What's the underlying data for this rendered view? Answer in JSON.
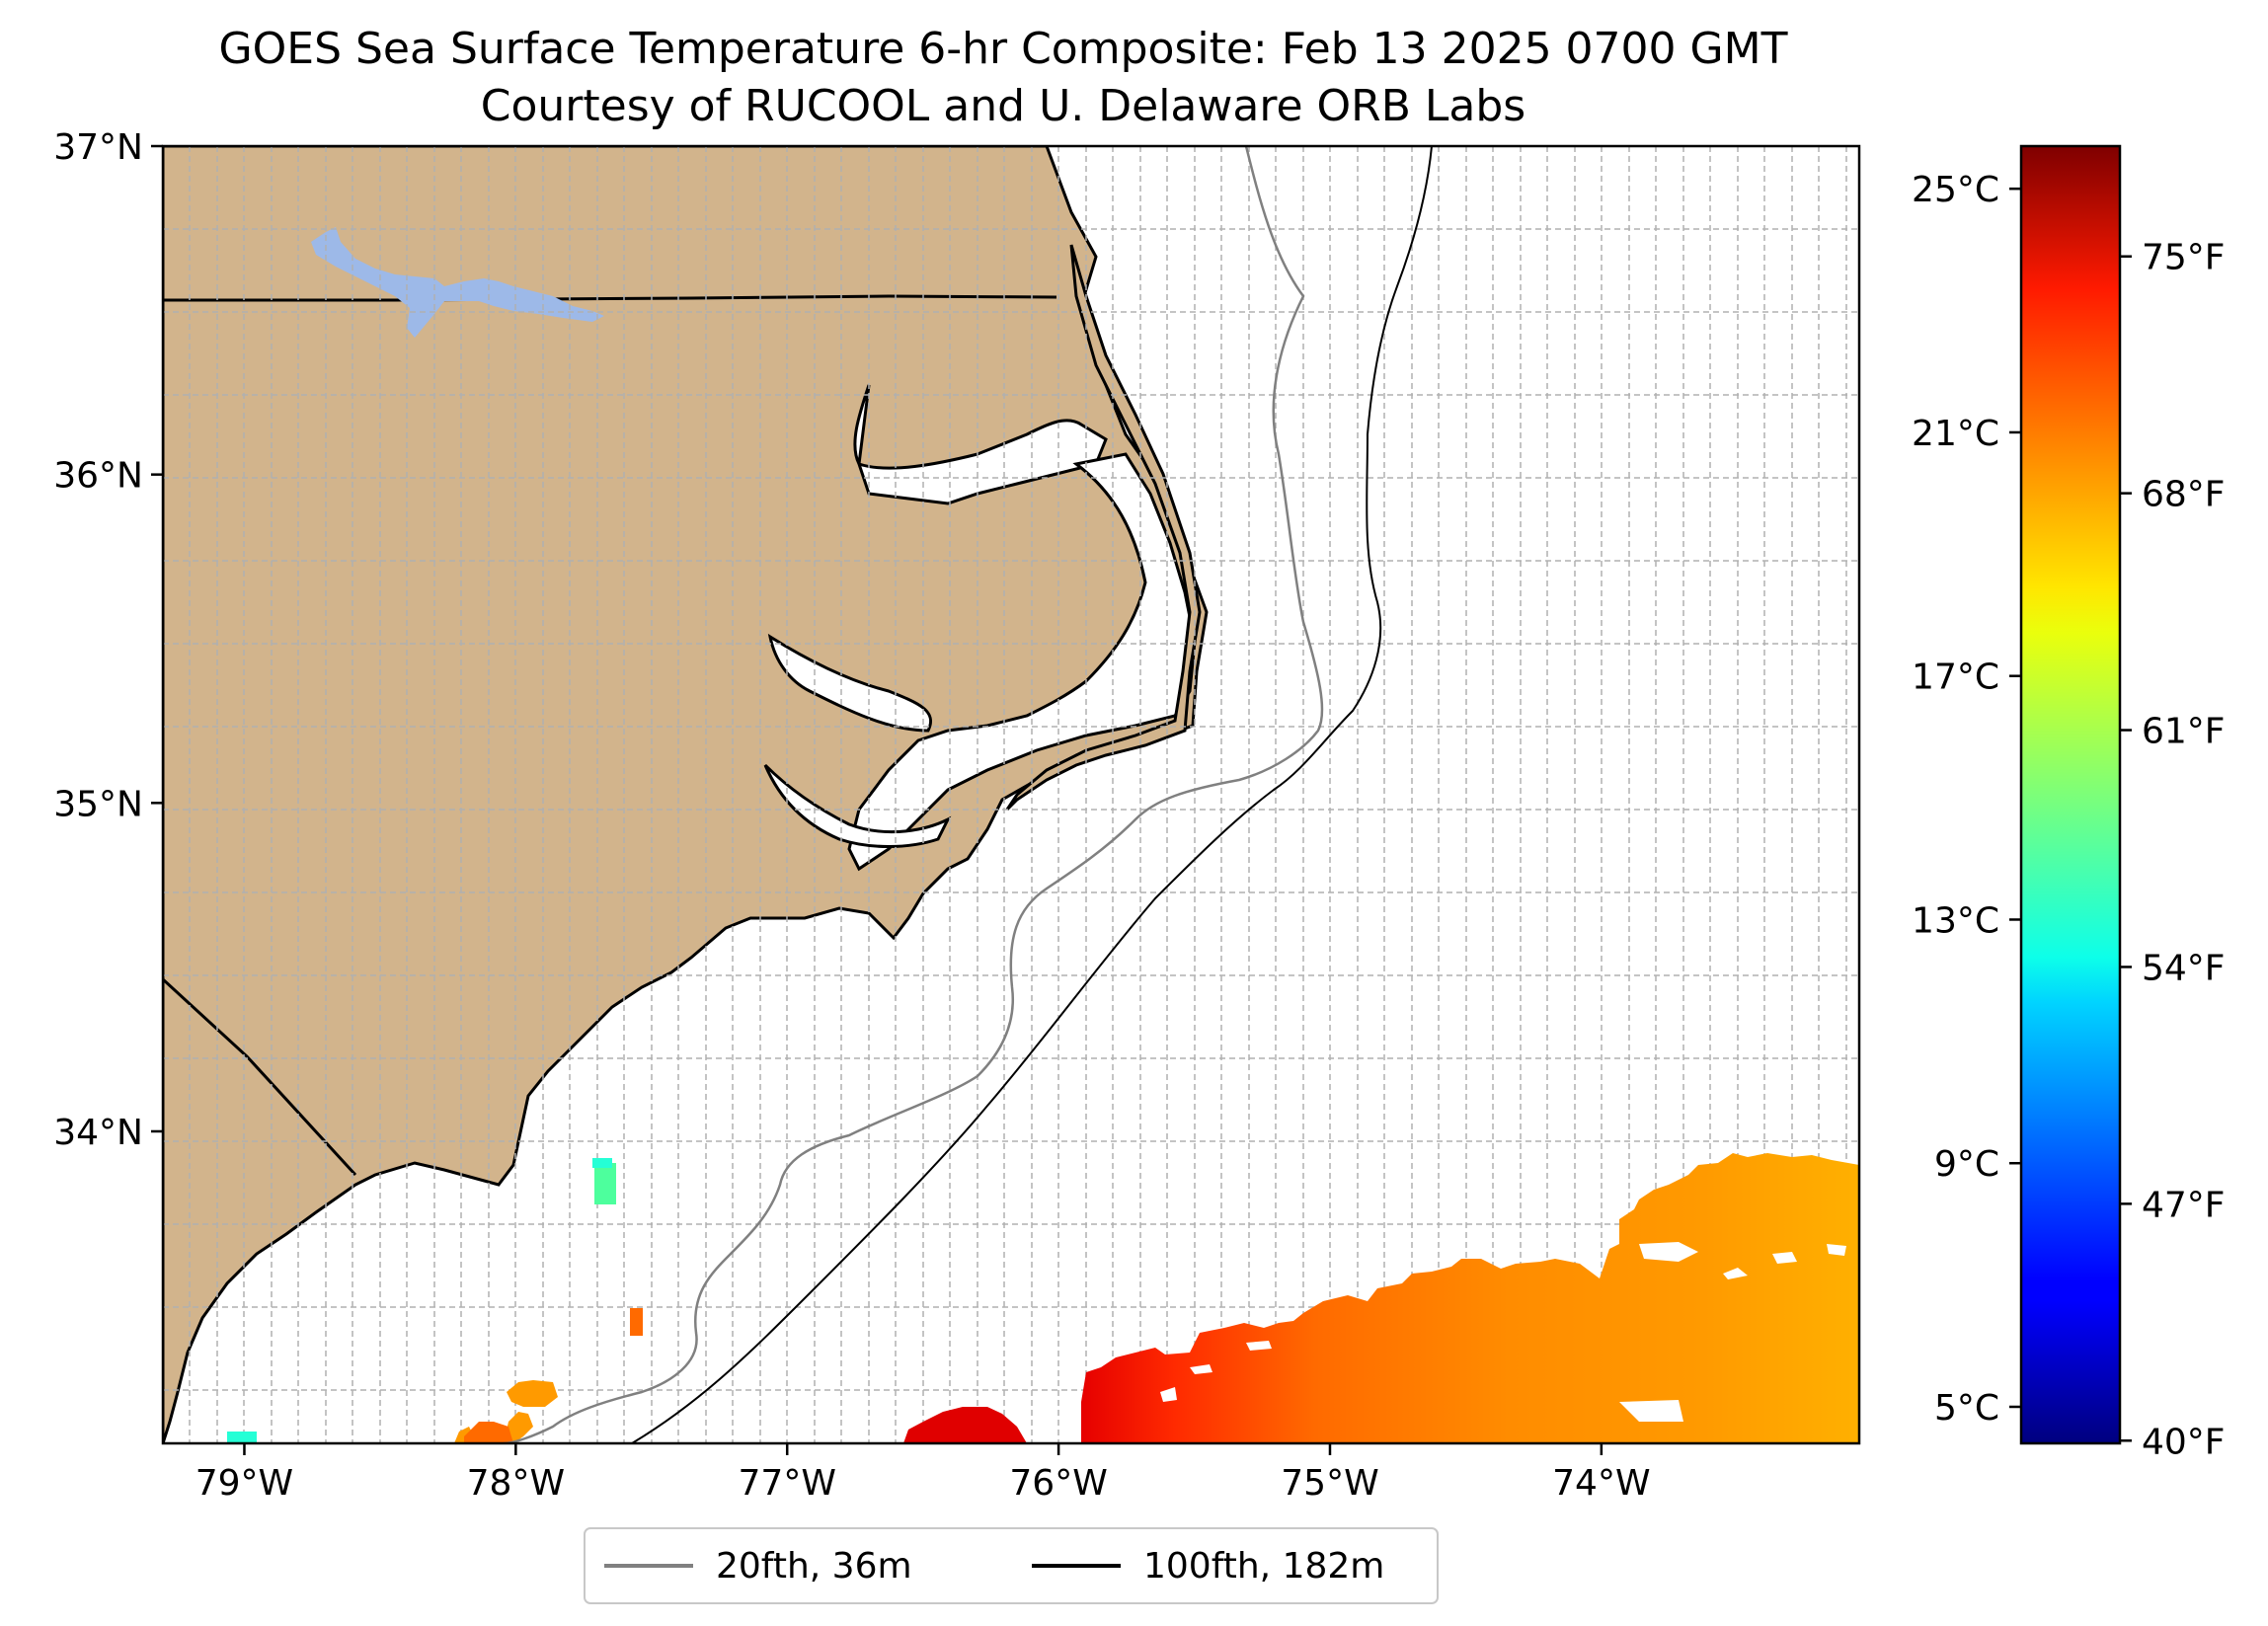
{
  "title": {
    "line1": "GOES Sea Surface Temperature 6-hr Composite: Feb 13 2025 0700 GMT",
    "line2": "Courtesy of RUCOOL and U. Delaware ORB Labs"
  },
  "map": {
    "lon_range": [
      -79.3,
      -73.05
    ],
    "lat_range": [
      33.05,
      37.0
    ],
    "lon_ticks": [
      {
        "value": -79,
        "label": "79°W"
      },
      {
        "value": -78,
        "label": "78°W"
      },
      {
        "value": -77,
        "label": "77°W"
      },
      {
        "value": -76,
        "label": "76°W"
      },
      {
        "value": -75,
        "label": "75°W"
      },
      {
        "value": -74,
        "label": "74°W"
      }
    ],
    "lat_ticks": [
      {
        "value": 37,
        "label": "37°N"
      },
      {
        "value": 36,
        "label": "36°N"
      },
      {
        "value": 35,
        "label": "35°N"
      },
      {
        "value": 34,
        "label": "34°N"
      }
    ],
    "colors": {
      "land": "#d2b48c",
      "lakes": "#9db9e8",
      "ocean": "#ffffff",
      "grid": "#b0b0b0",
      "isobath_20": "#808080",
      "isobath_100": "#000000"
    }
  },
  "colorbar": {
    "colormap": "jet",
    "range_c": [
      4.4,
      25.7
    ],
    "celsius_ticks": [
      {
        "value": 25,
        "label": "25°C"
      },
      {
        "value": 21,
        "label": "21°C"
      },
      {
        "value": 17,
        "label": "17°C"
      },
      {
        "value": 13,
        "label": "13°C"
      },
      {
        "value": 9,
        "label": "9°C"
      },
      {
        "value": 5,
        "label": "5°C"
      }
    ],
    "fahrenheit_ticks": [
      {
        "value": 75,
        "label": "75°F"
      },
      {
        "value": 68,
        "label": "68°F"
      },
      {
        "value": 61,
        "label": "61°F"
      },
      {
        "value": 54,
        "label": "54°F"
      },
      {
        "value": 47,
        "label": "47°F"
      },
      {
        "value": 40,
        "label": "40°F"
      }
    ]
  },
  "legend": {
    "items": [
      {
        "label": "20fth, 36m",
        "color": "#808080"
      },
      {
        "label": "100fth, 182m",
        "color": "#000000"
      }
    ]
  }
}
